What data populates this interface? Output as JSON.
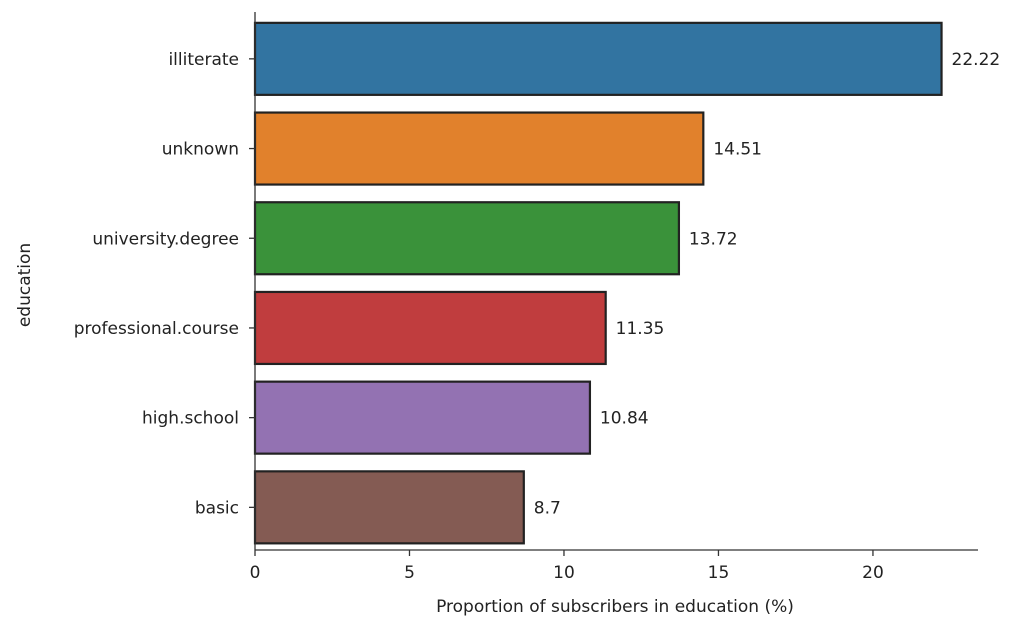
{
  "chart_data": {
    "type": "bar",
    "orientation": "horizontal",
    "categories": [
      "illiterate",
      "unknown",
      "university.degree",
      "professional.course",
      "high.school",
      "basic"
    ],
    "values": [
      22.22,
      14.51,
      13.72,
      11.35,
      10.84,
      8.7
    ],
    "data_labels": [
      "22.22",
      "14.51",
      "13.72",
      "11.35",
      "10.84",
      "8.7"
    ],
    "colors": [
      "#3274a1",
      "#e1812c",
      "#3a923a",
      "#c03d3e",
      "#9372b2",
      "#845b53"
    ],
    "xlabel": "Proportion of subscribers in education (%)",
    "ylabel": "education",
    "xlim": [
      0,
      23.4
    ],
    "xticks": [
      0,
      5,
      10,
      15,
      20
    ],
    "xtick_labels": [
      "0",
      "5",
      "10",
      "15",
      "20"
    ],
    "grid": false
  }
}
